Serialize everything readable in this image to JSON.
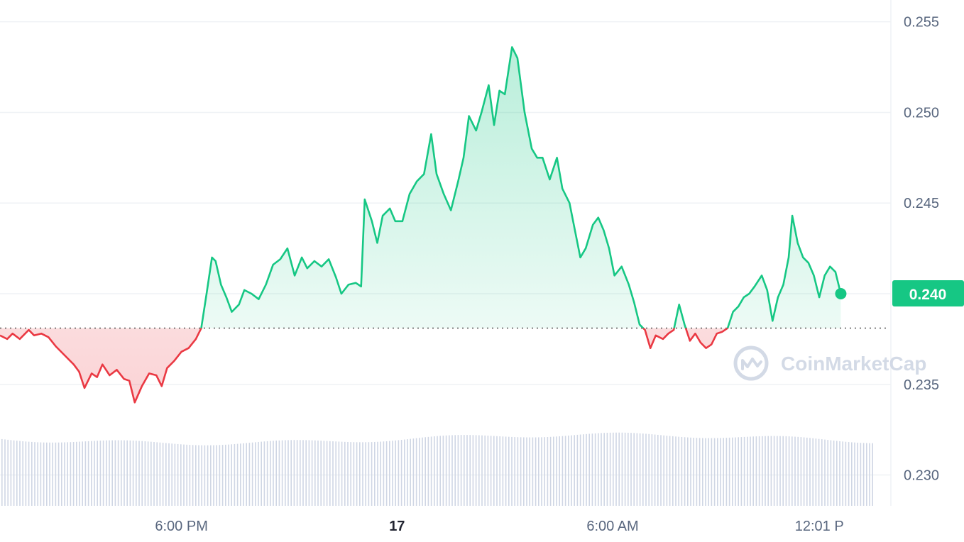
{
  "chart_data": {
    "type": "area",
    "y_ticks": [
      "0.255",
      "0.250",
      "0.245",
      "0.240",
      "0.235",
      "0.230"
    ],
    "x_ticks": [
      {
        "label": "6:00 PM",
        "bold": false,
        "t": 18
      },
      {
        "label": "17",
        "bold": true,
        "t": 24
      },
      {
        "label": "6:00 AM",
        "bold": false,
        "t": 30
      },
      {
        "label": "12:01 P",
        "bold": false,
        "t": 36
      }
    ],
    "ylim": [
      0.2283,
      0.2562
    ],
    "xlim": [
      12.95,
      37.25
    ],
    "baseline": 0.2381,
    "current_price_label": "0.240",
    "current_price": 0.24,
    "watermark": "CoinMarketCap",
    "colors": {
      "up": "#16c784",
      "down": "#ea3943",
      "badge": "#16c784",
      "grid": "#eff2f5",
      "volume": "#cfd6e4"
    },
    "price_series": [
      [
        12.95,
        0.2377
      ],
      [
        13.15,
        0.2375
      ],
      [
        13.3,
        0.2378
      ],
      [
        13.5,
        0.2375
      ],
      [
        13.75,
        0.238
      ],
      [
        13.9,
        0.2377
      ],
      [
        14.1,
        0.2378
      ],
      [
        14.3,
        0.2376
      ],
      [
        14.5,
        0.2371
      ],
      [
        14.75,
        0.2366
      ],
      [
        15.0,
        0.2361
      ],
      [
        15.15,
        0.2357
      ],
      [
        15.3,
        0.2348
      ],
      [
        15.5,
        0.2356
      ],
      [
        15.65,
        0.2354
      ],
      [
        15.8,
        0.2361
      ],
      [
        16.0,
        0.2355
      ],
      [
        16.2,
        0.2358
      ],
      [
        16.4,
        0.2353
      ],
      [
        16.55,
        0.2352
      ],
      [
        16.7,
        0.234
      ],
      [
        16.9,
        0.2349
      ],
      [
        17.1,
        0.2356
      ],
      [
        17.3,
        0.2355
      ],
      [
        17.45,
        0.2349
      ],
      [
        17.6,
        0.2359
      ],
      [
        17.8,
        0.2363
      ],
      [
        18.0,
        0.2368
      ],
      [
        18.2,
        0.237
      ],
      [
        18.4,
        0.2375
      ],
      [
        18.55,
        0.2381
      ],
      [
        18.7,
        0.24
      ],
      [
        18.85,
        0.242
      ],
      [
        18.95,
        0.2418
      ],
      [
        19.1,
        0.2405
      ],
      [
        19.25,
        0.2398
      ],
      [
        19.4,
        0.239
      ],
      [
        19.6,
        0.2394
      ],
      [
        19.75,
        0.2402
      ],
      [
        19.95,
        0.24
      ],
      [
        20.15,
        0.2397
      ],
      [
        20.35,
        0.2405
      ],
      [
        20.55,
        0.2416
      ],
      [
        20.75,
        0.2419
      ],
      [
        20.95,
        0.2425
      ],
      [
        21.15,
        0.241
      ],
      [
        21.35,
        0.242
      ],
      [
        21.5,
        0.2414
      ],
      [
        21.7,
        0.2418
      ],
      [
        21.9,
        0.2415
      ],
      [
        22.1,
        0.2419
      ],
      [
        22.3,
        0.2409
      ],
      [
        22.45,
        0.24
      ],
      [
        22.65,
        0.2405
      ],
      [
        22.85,
        0.2406
      ],
      [
        23.0,
        0.2404
      ],
      [
        23.1,
        0.2452
      ],
      [
        23.3,
        0.244
      ],
      [
        23.45,
        0.2428
      ],
      [
        23.6,
        0.2443
      ],
      [
        23.8,
        0.2447
      ],
      [
        23.95,
        0.244
      ],
      [
        24.15,
        0.244
      ],
      [
        24.35,
        0.2455
      ],
      [
        24.55,
        0.2462
      ],
      [
        24.75,
        0.2466
      ],
      [
        24.95,
        0.2488
      ],
      [
        25.1,
        0.2466
      ],
      [
        25.3,
        0.2455
      ],
      [
        25.5,
        0.2446
      ],
      [
        25.7,
        0.2462
      ],
      [
        25.85,
        0.2475
      ],
      [
        26.0,
        0.2498
      ],
      [
        26.2,
        0.249
      ],
      [
        26.35,
        0.25
      ],
      [
        26.55,
        0.2515
      ],
      [
        26.7,
        0.2493
      ],
      [
        26.85,
        0.2512
      ],
      [
        27.0,
        0.251
      ],
      [
        27.2,
        0.2536
      ],
      [
        27.35,
        0.253
      ],
      [
        27.55,
        0.25
      ],
      [
        27.75,
        0.248
      ],
      [
        27.9,
        0.2475
      ],
      [
        28.05,
        0.2475
      ],
      [
        28.25,
        0.2463
      ],
      [
        28.45,
        0.2475
      ],
      [
        28.6,
        0.2458
      ],
      [
        28.8,
        0.245
      ],
      [
        28.95,
        0.2435
      ],
      [
        29.1,
        0.242
      ],
      [
        29.25,
        0.2425
      ],
      [
        29.45,
        0.2438
      ],
      [
        29.6,
        0.2442
      ],
      [
        29.75,
        0.2435
      ],
      [
        29.9,
        0.2425
      ],
      [
        30.05,
        0.241
      ],
      [
        30.25,
        0.2415
      ],
      [
        30.45,
        0.2405
      ],
      [
        30.6,
        0.2395
      ],
      [
        30.75,
        0.2383
      ],
      [
        30.9,
        0.238
      ],
      [
        31.05,
        0.237
      ],
      [
        31.2,
        0.2377
      ],
      [
        31.4,
        0.2375
      ],
      [
        31.55,
        0.2378
      ],
      [
        31.7,
        0.238
      ],
      [
        31.85,
        0.2394
      ],
      [
        32.0,
        0.2383
      ],
      [
        32.15,
        0.2374
      ],
      [
        32.3,
        0.2378
      ],
      [
        32.45,
        0.2373
      ],
      [
        32.6,
        0.237
      ],
      [
        32.75,
        0.2372
      ],
      [
        32.9,
        0.2378
      ],
      [
        33.05,
        0.2379
      ],
      [
        33.2,
        0.2381
      ],
      [
        33.35,
        0.239
      ],
      [
        33.5,
        0.2393
      ],
      [
        33.65,
        0.2398
      ],
      [
        33.8,
        0.24
      ],
      [
        33.95,
        0.2404
      ],
      [
        34.15,
        0.241
      ],
      [
        34.3,
        0.2402
      ],
      [
        34.45,
        0.2385
      ],
      [
        34.6,
        0.2398
      ],
      [
        34.75,
        0.2405
      ],
      [
        34.9,
        0.242
      ],
      [
        35.0,
        0.2443
      ],
      [
        35.15,
        0.2428
      ],
      [
        35.3,
        0.242
      ],
      [
        35.45,
        0.2417
      ],
      [
        35.6,
        0.241
      ],
      [
        35.75,
        0.2398
      ],
      [
        35.9,
        0.241
      ],
      [
        36.05,
        0.2415
      ],
      [
        36.2,
        0.2412
      ],
      [
        36.35,
        0.24
      ]
    ],
    "volume_level": 0.93
  }
}
